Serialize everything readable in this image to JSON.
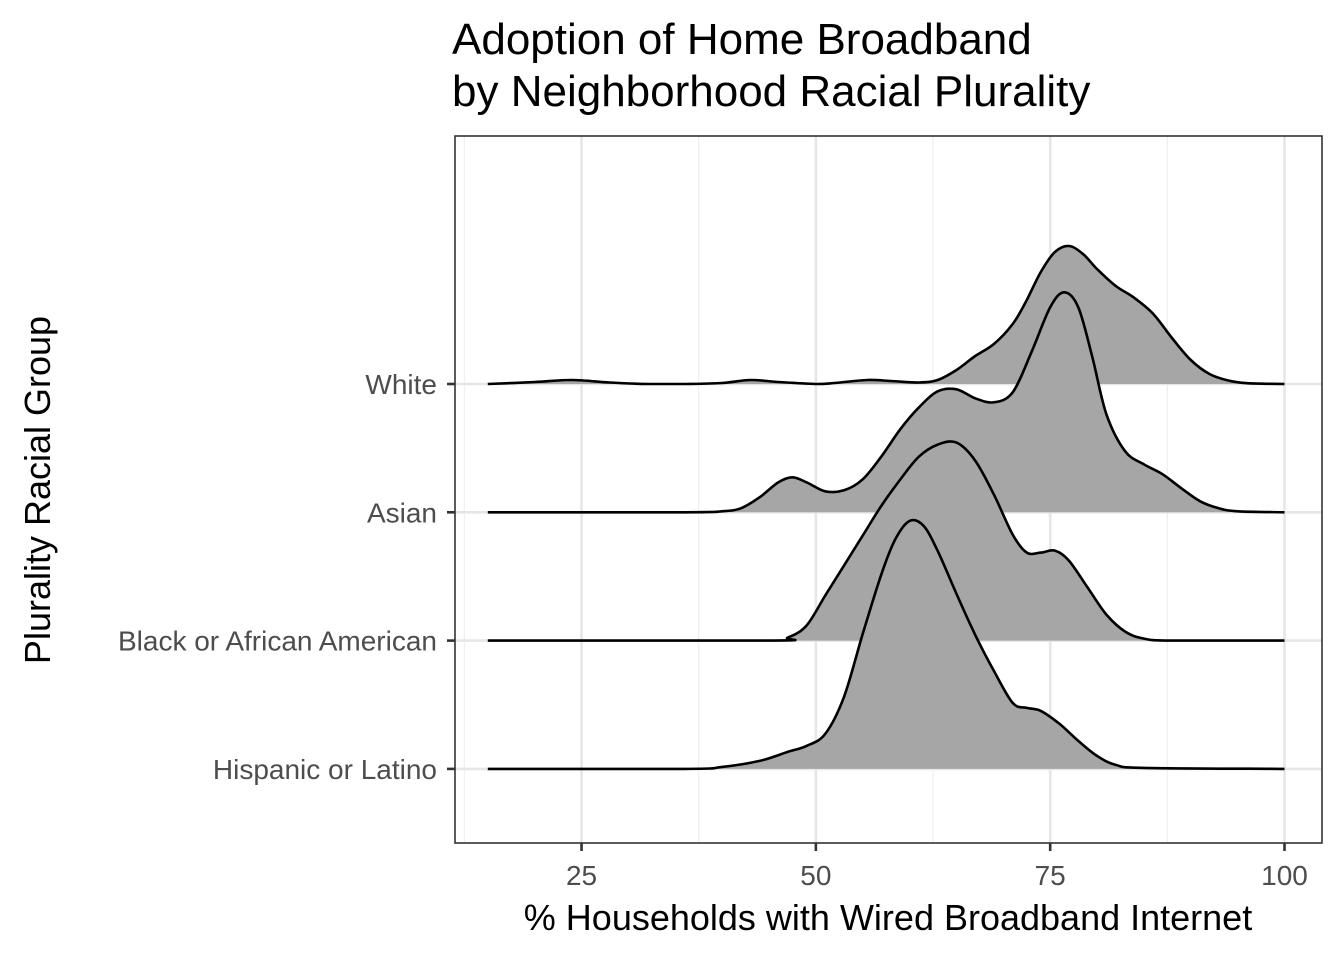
{
  "chart_data": {
    "type": "ridgeline",
    "title": [
      "Adoption of Home Broadband",
      "by Neighborhood Racial Plurality"
    ],
    "xlabel": "% Households with Wired Broadband Internet",
    "ylabel": "Plurality Racial Group",
    "xlim": [
      11.5,
      104
    ],
    "x_ticks": [
      25,
      50,
      75,
      100
    ],
    "fill_color": "#a6a6a6",
    "line_color": "#000000",
    "grid": true,
    "series": [
      {
        "name": "White",
        "points": [
          [
            15,
            0
          ],
          [
            20,
            0.02
          ],
          [
            24,
            0.04
          ],
          [
            28,
            0.015
          ],
          [
            32,
            0
          ],
          [
            36,
            0
          ],
          [
            40,
            0.01
          ],
          [
            43,
            0.04
          ],
          [
            46,
            0.02
          ],
          [
            50,
            0
          ],
          [
            52,
            0.01
          ],
          [
            55.5,
            0.04
          ],
          [
            58,
            0.03
          ],
          [
            61,
            0.015
          ],
          [
            63,
            0.04
          ],
          [
            65,
            0.14
          ],
          [
            67,
            0.28
          ],
          [
            69,
            0.4
          ],
          [
            71,
            0.6
          ],
          [
            72.5,
            0.84
          ],
          [
            74,
            1.12
          ],
          [
            75.5,
            1.32
          ],
          [
            77,
            1.38
          ],
          [
            78.5,
            1.3
          ],
          [
            80,
            1.15
          ],
          [
            82,
            0.98
          ],
          [
            84,
            0.86
          ],
          [
            86,
            0.7
          ],
          [
            88,
            0.46
          ],
          [
            90,
            0.24
          ],
          [
            92,
            0.1
          ],
          [
            94,
            0.035
          ],
          [
            96,
            0.008
          ],
          [
            100,
            0
          ]
        ]
      },
      {
        "name": "Asian",
        "points": [
          [
            15,
            0
          ],
          [
            36,
            0
          ],
          [
            40,
            0.01
          ],
          [
            42,
            0.04
          ],
          [
            44,
            0.15
          ],
          [
            46,
            0.3
          ],
          [
            47.5,
            0.35
          ],
          [
            49,
            0.3
          ],
          [
            51,
            0.21
          ],
          [
            53,
            0.22
          ],
          [
            55,
            0.33
          ],
          [
            57,
            0.56
          ],
          [
            59,
            0.83
          ],
          [
            61,
            1.05
          ],
          [
            63,
            1.21
          ],
          [
            65,
            1.23
          ],
          [
            67,
            1.14
          ],
          [
            69,
            1.1
          ],
          [
            71,
            1.2
          ],
          [
            73,
            1.6
          ],
          [
            75,
            2.05
          ],
          [
            76.5,
            2.2
          ],
          [
            78,
            2.05
          ],
          [
            79.5,
            1.55
          ],
          [
            81,
            0.98
          ],
          [
            83,
            0.61
          ],
          [
            85,
            0.48
          ],
          [
            87,
            0.38
          ],
          [
            89,
            0.24
          ],
          [
            91,
            0.11
          ],
          [
            93,
            0.04
          ],
          [
            95,
            0.01
          ],
          [
            100,
            0
          ]
        ]
      },
      {
        "name": "Black or African American",
        "points": [
          [
            15,
            0
          ],
          [
            45,
            0
          ],
          [
            47,
            0.03
          ],
          [
            49,
            0.15
          ],
          [
            51,
            0.45
          ],
          [
            53,
            0.75
          ],
          [
            55,
            1.05
          ],
          [
            57,
            1.35
          ],
          [
            59,
            1.61
          ],
          [
            61,
            1.84
          ],
          [
            63,
            1.96
          ],
          [
            65,
            1.98
          ],
          [
            67,
            1.8
          ],
          [
            69,
            1.46
          ],
          [
            71,
            1.06
          ],
          [
            72.5,
            0.88
          ],
          [
            74,
            0.88
          ],
          [
            75.5,
            0.9
          ],
          [
            77,
            0.8
          ],
          [
            79,
            0.53
          ],
          [
            81,
            0.26
          ],
          [
            83,
            0.09
          ],
          [
            85,
            0.02
          ],
          [
            88,
            0
          ],
          [
            100,
            0
          ]
        ]
      },
      {
        "name": "Hispanic or Latino",
        "points": [
          [
            15,
            0
          ],
          [
            36,
            0
          ],
          [
            40,
            0.02
          ],
          [
            44,
            0.08
          ],
          [
            47,
            0.17
          ],
          [
            49,
            0.23
          ],
          [
            51,
            0.35
          ],
          [
            53,
            0.72
          ],
          [
            55,
            1.35
          ],
          [
            57,
            1.95
          ],
          [
            58.5,
            2.3
          ],
          [
            60,
            2.48
          ],
          [
            61.5,
            2.43
          ],
          [
            63,
            2.18
          ],
          [
            65,
            1.75
          ],
          [
            67,
            1.34
          ],
          [
            69,
            0.98
          ],
          [
            71,
            0.66
          ],
          [
            72.5,
            0.61
          ],
          [
            74,
            0.58
          ],
          [
            76,
            0.45
          ],
          [
            78,
            0.28
          ],
          [
            80,
            0.13
          ],
          [
            82,
            0.04
          ],
          [
            85,
            0.01
          ],
          [
            100,
            0
          ]
        ]
      }
    ]
  }
}
